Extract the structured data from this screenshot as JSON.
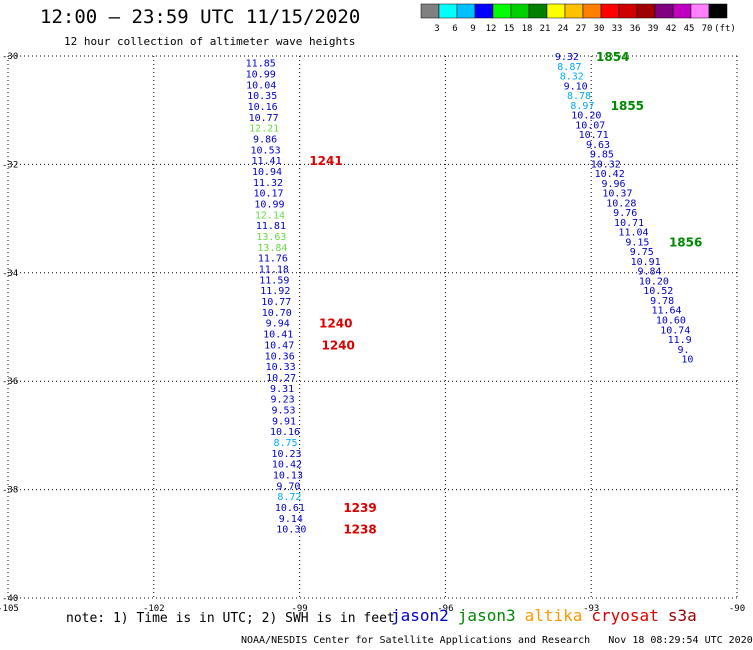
{
  "header": {
    "title": "12:00 – 23:59 UTC 11/15/2020",
    "subtitle": "12 hour collection of altimeter wave heights"
  },
  "colorbar": {
    "colors": [
      "#808080",
      "#00ffff",
      "#00c0ff",
      "#0000ff",
      "#00ff00",
      "#00d000",
      "#008000",
      "#ffff00",
      "#ffc000",
      "#ff8000",
      "#ff0000",
      "#d00000",
      "#a00000",
      "#800080",
      "#c000c0",
      "#ff80ff",
      "#000000"
    ],
    "labels": [
      "3",
      "6",
      "9",
      "12",
      "15",
      "18",
      "21",
      "24",
      "27",
      "30",
      "33",
      "36",
      "39",
      "42",
      "45",
      "70",
      "(ft)"
    ]
  },
  "footer": {
    "note": "note: 1) Time is in UTC; 2) SWH is in feet",
    "satellites": [
      {
        "name": "jason2",
        "color": "#0000cc"
      },
      {
        "name": "jason3",
        "color": "#008800"
      },
      {
        "name": "altika",
        "color": "#ff9900"
      },
      {
        "name": "cryosat",
        "color": "#dd0000"
      },
      {
        "name": "s3a",
        "color": "#990000"
      }
    ],
    "credit": "NOAA/NESDIS Center for Satellite Applications and Research   Nov 18 08:29:54 UTC 2020"
  },
  "chart_data": {
    "type": "scatter",
    "title": "12:00 – 23:59 UTC 11/15/2020",
    "subtitle": "12 hour collection of altimeter wave heights",
    "x_ticks": [
      "-105",
      "-102",
      "-99",
      "-96",
      "-93",
      "-90"
    ],
    "y_ticks": [
      "-30",
      "-32",
      "-34",
      "-36",
      "-38",
      "-40"
    ],
    "xlim": [
      -105,
      -90
    ],
    "ylim": [
      -40,
      -30
    ],
    "grid": true,
    "series": [
      {
        "name": "jason2",
        "points": [
          {
            "x": -99.8,
            "y": -30.14,
            "v": "11.85",
            "c": "#0000cc"
          },
          {
            "x": -99.8,
            "y": -30.34,
            "v": "10.99",
            "c": "#0000cc"
          },
          {
            "x": -99.79,
            "y": -30.54,
            "v": "10.04",
            "c": "#0000cc"
          },
          {
            "x": -99.77,
            "y": -30.74,
            "v": "10.35",
            "c": "#0000cc"
          },
          {
            "x": -99.76,
            "y": -30.94,
            "v": "10.16",
            "c": "#0000cc"
          },
          {
            "x": -99.74,
            "y": -31.14,
            "v": "10.77",
            "c": "#0000cc"
          },
          {
            "x": -99.73,
            "y": -31.34,
            "v": "12.21",
            "c": "#66dd44"
          },
          {
            "x": -99.71,
            "y": -31.54,
            "v": "9.86",
            "c": "#0000cc"
          },
          {
            "x": -99.7,
            "y": -31.74,
            "v": "10.53",
            "c": "#0000cc"
          },
          {
            "x": -99.68,
            "y": -31.94,
            "v": "11.41",
            "c": "#0000cc"
          },
          {
            "x": -99.67,
            "y": -32.14,
            "v": "10.94",
            "c": "#0000cc"
          },
          {
            "x": -99.65,
            "y": -32.34,
            "v": "11.32",
            "c": "#0000cc"
          },
          {
            "x": -99.64,
            "y": -32.54,
            "v": "10.17",
            "c": "#0000cc"
          },
          {
            "x": -99.62,
            "y": -32.74,
            "v": "10.99",
            "c": "#0000cc"
          },
          {
            "x": -99.61,
            "y": -32.94,
            "v": "12.14",
            "c": "#66dd44"
          },
          {
            "x": -99.59,
            "y": -33.14,
            "v": "11.81",
            "c": "#0000cc"
          },
          {
            "x": -99.58,
            "y": -33.34,
            "v": "13.63",
            "c": "#66dd44"
          },
          {
            "x": -99.56,
            "y": -33.54,
            "v": "13.84",
            "c": "#66dd44"
          },
          {
            "x": -99.55,
            "y": -33.74,
            "v": "11.76",
            "c": "#0000cc"
          },
          {
            "x": -99.53,
            "y": -33.94,
            "v": "11.18",
            "c": "#0000cc"
          },
          {
            "x": -99.52,
            "y": -34.14,
            "v": "11.59",
            "c": "#0000cc"
          },
          {
            "x": -99.5,
            "y": -34.34,
            "v": "11.92",
            "c": "#0000cc"
          },
          {
            "x": -99.48,
            "y": -34.54,
            "v": "10.77",
            "c": "#0000cc"
          },
          {
            "x": -99.47,
            "y": -34.74,
            "v": "10.70",
            "c": "#0000cc"
          },
          {
            "x": -99.45,
            "y": -34.94,
            "v": "9.94",
            "c": "#0000cc"
          },
          {
            "x": -99.44,
            "y": -35.14,
            "v": "10.41",
            "c": "#0000cc"
          },
          {
            "x": -99.42,
            "y": -35.34,
            "v": "10.47",
            "c": "#0000cc"
          },
          {
            "x": -99.41,
            "y": -35.54,
            "v": "10.36",
            "c": "#0000cc"
          },
          {
            "x": -99.39,
            "y": -35.74,
            "v": "10.33",
            "c": "#0000cc"
          },
          {
            "x": -99.38,
            "y": -35.94,
            "v": "10.27",
            "c": "#0000cc"
          },
          {
            "x": -99.36,
            "y": -36.14,
            "v": "9.31",
            "c": "#0000cc"
          },
          {
            "x": -99.35,
            "y": -36.34,
            "v": "9.23",
            "c": "#0000cc"
          },
          {
            "x": -99.33,
            "y": -36.54,
            "v": "9.53",
            "c": "#0000cc"
          },
          {
            "x": -99.32,
            "y": -36.74,
            "v": "9.91",
            "c": "#0000cc"
          },
          {
            "x": -99.3,
            "y": -36.94,
            "v": "10.16",
            "c": "#0000cc"
          },
          {
            "x": -99.29,
            "y": -37.14,
            "v": "8.75",
            "c": "#00aaff"
          },
          {
            "x": -99.27,
            "y": -37.34,
            "v": "10.23",
            "c": "#0000cc"
          },
          {
            "x": -99.26,
            "y": -37.54,
            "v": "10.42",
            "c": "#0000cc"
          },
          {
            "x": -99.24,
            "y": -37.74,
            "v": "10.13",
            "c": "#0000cc"
          },
          {
            "x": -99.23,
            "y": -37.94,
            "v": "9.70",
            "c": "#0000cc"
          },
          {
            "x": -99.21,
            "y": -38.14,
            "v": "8.72",
            "c": "#00aaff"
          },
          {
            "x": -99.2,
            "y": -38.34,
            "v": "10.61",
            "c": "#0000cc"
          },
          {
            "x": -99.18,
            "y": -38.54,
            "v": "9.14",
            "c": "#0000cc"
          },
          {
            "x": -99.17,
            "y": -38.74,
            "v": "10.30",
            "c": "#0000cc"
          }
        ]
      },
      {
        "name": "jason3",
        "points": [
          {
            "x": -93.5,
            "y": -30.02,
            "v": "9.32",
            "c": "#0000cc"
          },
          {
            "x": -93.45,
            "y": -30.2,
            "v": "8.87",
            "c": "#00aaff"
          },
          {
            "x": -93.4,
            "y": -30.38,
            "v": "8.32",
            "c": "#00aaff"
          },
          {
            "x": -93.32,
            "y": -30.56,
            "v": "9.10",
            "c": "#0000cc"
          },
          {
            "x": -93.25,
            "y": -30.74,
            "v": "8.78",
            "c": "#00aaff"
          },
          {
            "x": -93.18,
            "y": -30.92,
            "v": "8.97",
            "c": "#00aaff"
          },
          {
            "x": -93.1,
            "y": -31.1,
            "v": "10.20",
            "c": "#0000cc"
          },
          {
            "x": -93.02,
            "y": -31.28,
            "v": "10.07",
            "c": "#0000cc"
          },
          {
            "x": -92.95,
            "y": -31.46,
            "v": "10.71",
            "c": "#0000cc"
          },
          {
            "x": -92.86,
            "y": -31.64,
            "v": "9.63",
            "c": "#0000cc"
          },
          {
            "x": -92.78,
            "y": -31.82,
            "v": "9.85",
            "c": "#0000cc"
          },
          {
            "x": -92.7,
            "y": -32.0,
            "v": "10.32",
            "c": "#0000cc"
          },
          {
            "x": -92.62,
            "y": -32.18,
            "v": "10.42",
            "c": "#0000cc"
          },
          {
            "x": -92.54,
            "y": -32.36,
            "v": "9.96",
            "c": "#0000cc"
          },
          {
            "x": -92.46,
            "y": -32.54,
            "v": "10.37",
            "c": "#0000cc"
          },
          {
            "x": -92.38,
            "y": -32.72,
            "v": "10.28",
            "c": "#0000cc"
          },
          {
            "x": -92.3,
            "y": -32.9,
            "v": "9.76",
            "c": "#0000cc"
          },
          {
            "x": -92.22,
            "y": -33.08,
            "v": "10.71",
            "c": "#0000cc"
          },
          {
            "x": -92.13,
            "y": -33.26,
            "v": "11.04",
            "c": "#0000cc"
          },
          {
            "x": -92.05,
            "y": -33.44,
            "v": "9.15",
            "c": "#0000cc"
          },
          {
            "x": -91.96,
            "y": -33.62,
            "v": "9.75",
            "c": "#0000cc"
          },
          {
            "x": -91.88,
            "y": -33.8,
            "v": "10.91",
            "c": "#0000cc"
          },
          {
            "x": -91.8,
            "y": -33.98,
            "v": "9.84",
            "c": "#0000cc"
          },
          {
            "x": -91.71,
            "y": -34.16,
            "v": "10.20",
            "c": "#0000cc"
          },
          {
            "x": -91.62,
            "y": -34.34,
            "v": "10.52",
            "c": "#0000cc"
          },
          {
            "x": -91.54,
            "y": -34.52,
            "v": "9.78",
            "c": "#0000cc"
          },
          {
            "x": -91.45,
            "y": -34.7,
            "v": "11.64",
            "c": "#0000cc"
          },
          {
            "x": -91.36,
            "y": -34.88,
            "v": "10.60",
            "c": "#0000cc"
          },
          {
            "x": -91.27,
            "y": -35.06,
            "v": "10.74",
            "c": "#0000cc"
          },
          {
            "x": -91.18,
            "y": -35.24,
            "v": "11.9",
            "c": "#0000cc"
          },
          {
            "x": -91.1,
            "y": -35.42,
            "v": "9.",
            "c": "#0000cc"
          },
          {
            "x": -91.02,
            "y": -35.6,
            "v": "10",
            "c": "#0000cc"
          }
        ]
      }
    ],
    "time_labels": [
      {
        "t": "1241",
        "x": -98.8,
        "y": -31.94,
        "c": "#dd0000"
      },
      {
        "t": "1240",
        "x": -98.6,
        "y": -34.94,
        "c": "#dd0000"
      },
      {
        "t": "1240",
        "x": -98.55,
        "y": -35.34,
        "c": "#dd0000"
      },
      {
        "t": "1239",
        "x": -98.1,
        "y": -38.34,
        "c": "#dd0000"
      },
      {
        "t": "1238",
        "x": -98.1,
        "y": -38.74,
        "c": "#dd0000"
      },
      {
        "t": "1854",
        "x": -92.9,
        "y": -30.02,
        "c": "#008800"
      },
      {
        "t": "1855",
        "x": -92.6,
        "y": -30.92,
        "c": "#008800"
      },
      {
        "t": "1856",
        "x": -91.4,
        "y": -33.44,
        "c": "#008800"
      }
    ]
  }
}
